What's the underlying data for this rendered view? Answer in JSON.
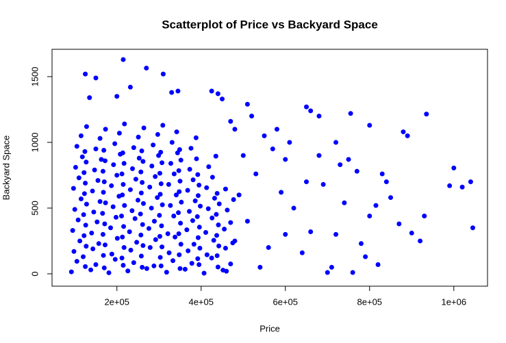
{
  "chart_data": {
    "type": "scatter",
    "title": "Scatterplot of Price vs Backyard Space",
    "x_label": "Price",
    "y_label": "Backyard Space",
    "color": "#0000ff",
    "xlim": [
      46000,
      1080000
    ],
    "ylim": [
      -94,
      1708
    ],
    "xticks": [
      {
        "value": 200000,
        "label": "2e+05"
      },
      {
        "value": 400000,
        "label": "4e+05"
      },
      {
        "value": 600000,
        "label": "6e+05"
      },
      {
        "value": 800000,
        "label": "8e+05"
      },
      {
        "value": 1000000,
        "label": "1e+06"
      }
    ],
    "yticks": [
      0,
      500,
      1000,
      1500
    ],
    "x": [
      92000,
      138000,
      181000,
      226000,
      271000,
      318000,
      362000,
      407000,
      452000,
      105000,
      150000,
      196000,
      240000,
      288000,
      333000,
      378000,
      425000,
      470000,
      98000,
      143000,
      188000,
      233000,
      279000,
      324000,
      369000,
      414000,
      458000,
      112000,
      157000,
      201000,
      247000,
      292000,
      338000,
      383000,
      430000,
      475000,
      95000,
      140000,
      185000,
      230000,
      276000,
      321000,
      366000,
      411000,
      455000,
      108000,
      153000,
      198000,
      243000,
      289000,
      335000,
      380000,
      426000,
      470000,
      100000,
      145000,
      191000,
      236000,
      282000,
      327000,
      372000,
      417000,
      462000,
      115000,
      160000,
      205000,
      250000,
      296000,
      341000,
      386000,
      432000,
      477000,
      97000,
      142000,
      187000,
      232000,
      278000,
      323000,
      368000,
      413000,
      458000,
      110000,
      155000,
      200000,
      245000,
      291000,
      336000,
      381000,
      427000,
      102000,
      147000,
      192000,
      237000,
      283000,
      328000,
      373000,
      418000,
      118000,
      163000,
      208000,
      253000,
      299000,
      344000,
      389000,
      435000,
      105000,
      150000,
      195000,
      240000,
      286000,
      331000,
      376000,
      115000,
      160000,
      206000,
      251000,
      297000,
      342000,
      388000,
      128000,
      173000,
      218000,
      264000,
      309000,
      125000,
      170000,
      215000,
      260000,
      305000,
      350000,
      395000,
      440000,
      120000,
      168000,
      212000,
      258000,
      303000,
      348000,
      392000,
      438000,
      127000,
      172000,
      217000,
      262000,
      307000,
      352000,
      397000,
      442000,
      122000,
      167000,
      213000,
      257000,
      302000,
      347000,
      393000,
      437000,
      126000,
      171000,
      216000,
      261000,
      306000,
      351000,
      396000,
      441000,
      121000,
      166000,
      211000,
      256000,
      301000,
      346000,
      391000,
      436000,
      128000,
      173000,
      218000,
      263000,
      308000,
      353000,
      398000,
      443000,
      123000,
      168000,
      213000,
      258000,
      303000,
      348000,
      393000,
      438000,
      125000,
      170000,
      215000,
      260000,
      305000,
      350000,
      395000,
      122000,
      167000,
      212000,
      257000,
      302000,
      347000,
      392000,
      127000,
      172000,
      217000,
      262000,
      307000,
      352000,
      124000,
      169000,
      214000,
      259000,
      304000,
      349000,
      215000,
      270000,
      125000,
      150000,
      310000,
      232000,
      135000,
      200000,
      330000,
      345000,
      425000,
      440000,
      450000,
      510000,
      650000,
      660000,
      680000,
      755000,
      800000,
      935000,
      880000,
      890000,
      1000000,
      1040000,
      1020000,
      1045000,
      990000,
      930000,
      900000,
      920000,
      870000,
      840000,
      850000,
      830000,
      815000,
      800000,
      780000,
      790000,
      760000,
      820000,
      700000,
      710000,
      720000,
      740000,
      690000,
      680000,
      730000,
      720000,
      750000,
      770000,
      660000,
      640000,
      620000,
      600000,
      580000,
      550000,
      520000,
      570000,
      610000,
      650000,
      600000,
      560000,
      540000,
      590000,
      530000,
      480000,
      470000,
      500000,
      490000,
      480000,
      510000,
      460000
    ],
    "values": [
      15,
      30,
      8,
      22,
      40,
      12,
      35,
      5,
      28,
      95,
      70,
      110,
      85,
      60,
      100,
      80,
      120,
      75,
      170,
      190,
      150,
      180,
      200,
      160,
      175,
      145,
      195,
      250,
      230,
      270,
      240,
      260,
      280,
      225,
      255,
      235,
      330,
      310,
      350,
      320,
      345,
      305,
      335,
      315,
      340,
      410,
      395,
      430,
      420,
      400,
      440,
      405,
      425,
      390,
      490,
      470,
      510,
      480,
      500,
      520,
      475,
      495,
      485,
      570,
      550,
      590,
      560,
      580,
      600,
      555,
      575,
      565,
      650,
      630,
      670,
      640,
      660,
      680,
      635,
      655,
      645,
      730,
      710,
      750,
      720,
      740,
      760,
      715,
      735,
      810,
      790,
      830,
      800,
      820,
      840,
      795,
      815,
      890,
      870,
      910,
      880,
      900,
      920,
      875,
      895,
      970,
      950,
      990,
      960,
      980,
      1000,
      955,
      1050,
      1030,
      1070,
      1040,
      1060,
      1080,
      1035,
      1120,
      1100,
      1140,
      1110,
      1130,
      55,
      45,
      65,
      50,
      60,
      40,
      70,
      52,
      130,
      140,
      120,
      135,
      125,
      145,
      115,
      138,
      210,
      220,
      200,
      215,
      205,
      225,
      195,
      212,
      290,
      300,
      280,
      295,
      285,
      305,
      275,
      292,
      370,
      380,
      360,
      375,
      365,
      385,
      355,
      372,
      450,
      460,
      440,
      455,
      445,
      465,
      435,
      452,
      530,
      540,
      520,
      535,
      525,
      545,
      515,
      532,
      610,
      620,
      600,
      615,
      605,
      625,
      595,
      612,
      690,
      700,
      680,
      695,
      685,
      705,
      675,
      770,
      780,
      760,
      775,
      765,
      785,
      755,
      850,
      860,
      840,
      855,
      845,
      865,
      930,
      940,
      920,
      935,
      925,
      945,
      1630,
      1565,
      1520,
      1490,
      1520,
      1420,
      1340,
      1350,
      1380,
      1390,
      1390,
      1370,
      1330,
      1290,
      1270,
      1240,
      1200,
      1220,
      1130,
      1215,
      1080,
      1050,
      805,
      700,
      660,
      350,
      670,
      440,
      310,
      250,
      380,
      700,
      580,
      760,
      520,
      440,
      230,
      130,
      10,
      70,
      10,
      50,
      300,
      540,
      680,
      900,
      830,
      1000,
      870,
      780,
      320,
      160,
      500,
      870,
      1100,
      1050,
      1200,
      950,
      1000,
      700,
      300,
      200,
      50,
      620,
      760,
      1100,
      1160,
      900,
      600,
      250,
      400,
      20
    ]
  }
}
